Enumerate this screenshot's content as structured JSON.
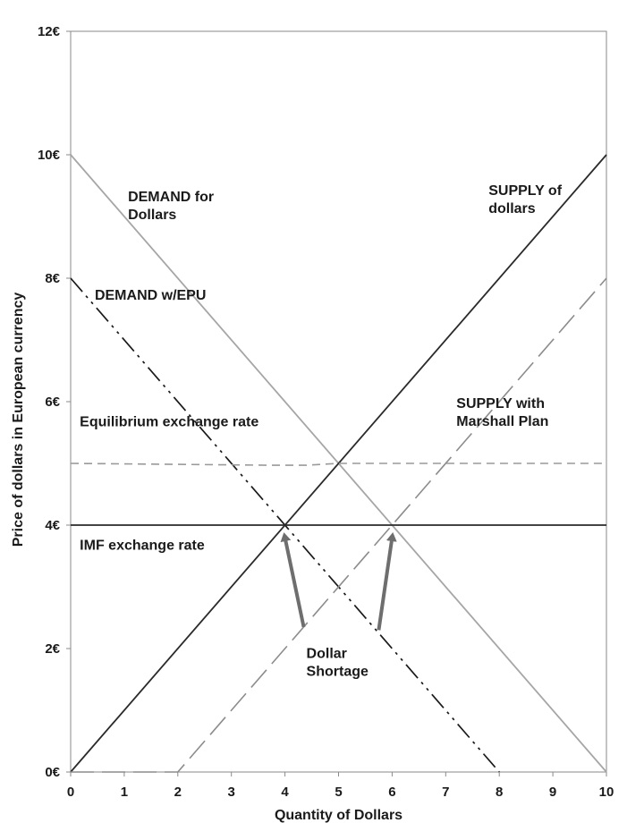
{
  "chart_data": {
    "type": "line",
    "xlabel": "Quantity of Dollars",
    "ylabel": "Price of dollars in European currency",
    "xlim": [
      0,
      10
    ],
    "ylim": [
      0,
      12
    ],
    "x_ticks": [
      "0",
      "1",
      "2",
      "3",
      "4",
      "5",
      "6",
      "7",
      "8",
      "9",
      "10"
    ],
    "y_ticks": [
      "0€",
      "2€",
      "4€",
      "6€",
      "8€",
      "10€",
      "12€"
    ],
    "grid": false,
    "series": [
      {
        "name": "DEMAND for Dollars",
        "style": "solid",
        "color": "#a6a6a6",
        "points": [
          [
            0,
            10
          ],
          [
            10,
            0
          ]
        ]
      },
      {
        "name": "DEMAND w/EPU",
        "style": "dashdotdot",
        "color": "#1a1a1a",
        "points": [
          [
            0,
            8
          ],
          [
            8,
            0
          ]
        ]
      },
      {
        "name": "SUPPLY of dollars",
        "style": "solid",
        "color": "#2a2a2a",
        "points": [
          [
            0,
            0
          ],
          [
            10,
            10
          ]
        ]
      },
      {
        "name": "SUPPLY with Marshall Plan",
        "style": "longdash",
        "color": "#8c8c8c",
        "points": [
          [
            0,
            0
          ],
          [
            2,
            0
          ],
          [
            10,
            8
          ]
        ]
      },
      {
        "name": "Equilibrium exchange rate",
        "style": "dashed",
        "color": "#9a9a9a",
        "points": [
          [
            0,
            5
          ],
          [
            3.8,
            4.97
          ],
          [
            4.4,
            4.97
          ],
          [
            5,
            5
          ],
          [
            10,
            5
          ]
        ]
      },
      {
        "name": "IMF exchange rate",
        "style": "solid",
        "color": "#2a2a2a",
        "points": [
          [
            0,
            4
          ],
          [
            10,
            4
          ]
        ]
      }
    ],
    "annotations": [
      {
        "id": "demand",
        "lines": [
          "DEMAND for",
          "Dollars"
        ]
      },
      {
        "id": "demand-epu",
        "lines": [
          "DEMAND w/EPU"
        ]
      },
      {
        "id": "supply",
        "lines": [
          "SUPPLY of",
          "dollars"
        ]
      },
      {
        "id": "supply-mp",
        "lines": [
          "SUPPLY with",
          "Marshall Plan"
        ]
      },
      {
        "id": "equilibrium",
        "lines": [
          "Equilibrium exchange rate"
        ]
      },
      {
        "id": "imf",
        "lines": [
          "IMF exchange rate"
        ]
      },
      {
        "id": "shortage",
        "lines": [
          "Dollar",
          "Shortage"
        ]
      }
    ],
    "arrows": [
      {
        "from": [
          4.35,
          2.35
        ],
        "to": [
          4.0,
          4.0
        ]
      },
      {
        "from": [
          5.75,
          2.3
        ],
        "to": [
          6.0,
          4.0
        ]
      }
    ]
  }
}
